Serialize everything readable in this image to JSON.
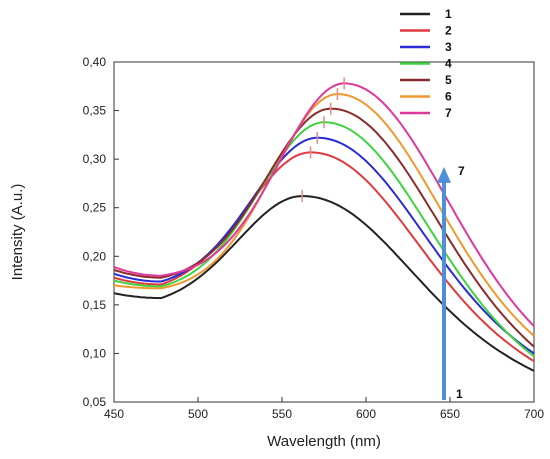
{
  "chart_data": {
    "type": "line",
    "xlabel": "Wavelength (nm)",
    "ylabel": "Intensity (A.u.)",
    "xlim": [
      450,
      700
    ],
    "ylim": [
      0.05,
      0.4
    ],
    "x_ticks": [
      "450",
      "500",
      "550",
      "600",
      "650",
      "700"
    ],
    "y_ticks": [
      "0,05",
      "0,10",
      "0,15",
      "0,20",
      "0,25",
      "0,30",
      "0,35",
      "0,40"
    ],
    "grid": false,
    "legend_position": "top-right",
    "series": [
      {
        "name": "1",
        "color": "#222222",
        "peak_x": 562,
        "peak_y": 0.262,
        "start_y": 0.162,
        "end_y": 0.082,
        "valley_y": 0.157
      },
      {
        "name": "2",
        "color": "#e0393e",
        "peak_x": 567,
        "peak_y": 0.307,
        "start_y": 0.178,
        "end_y": 0.092,
        "valley_y": 0.171
      },
      {
        "name": "3",
        "color": "#2a2ad6",
        "peak_x": 571,
        "peak_y": 0.322,
        "start_y": 0.182,
        "end_y": 0.1,
        "valley_y": 0.174
      },
      {
        "name": "4",
        "color": "#3fd43f",
        "peak_x": 575,
        "peak_y": 0.338,
        "start_y": 0.175,
        "end_y": 0.097,
        "valley_y": 0.169
      },
      {
        "name": "5",
        "color": "#8b2c2c",
        "peak_x": 579,
        "peak_y": 0.352,
        "start_y": 0.186,
        "end_y": 0.107,
        "valley_y": 0.178
      },
      {
        "name": "6",
        "color": "#f0982e",
        "peak_x": 583,
        "peak_y": 0.367,
        "start_y": 0.17,
        "end_y": 0.118,
        "valley_y": 0.167
      },
      {
        "name": "7",
        "color": "#e0389a",
        "peak_x": 587,
        "peak_y": 0.378,
        "start_y": 0.189,
        "end_y": 0.128,
        "valley_y": 0.18
      }
    ],
    "arrow": {
      "x": 650,
      "y_start": 0.052,
      "y_end": 0.29,
      "start_label": "1",
      "end_label": "7",
      "color": "#4f8fd6"
    }
  }
}
